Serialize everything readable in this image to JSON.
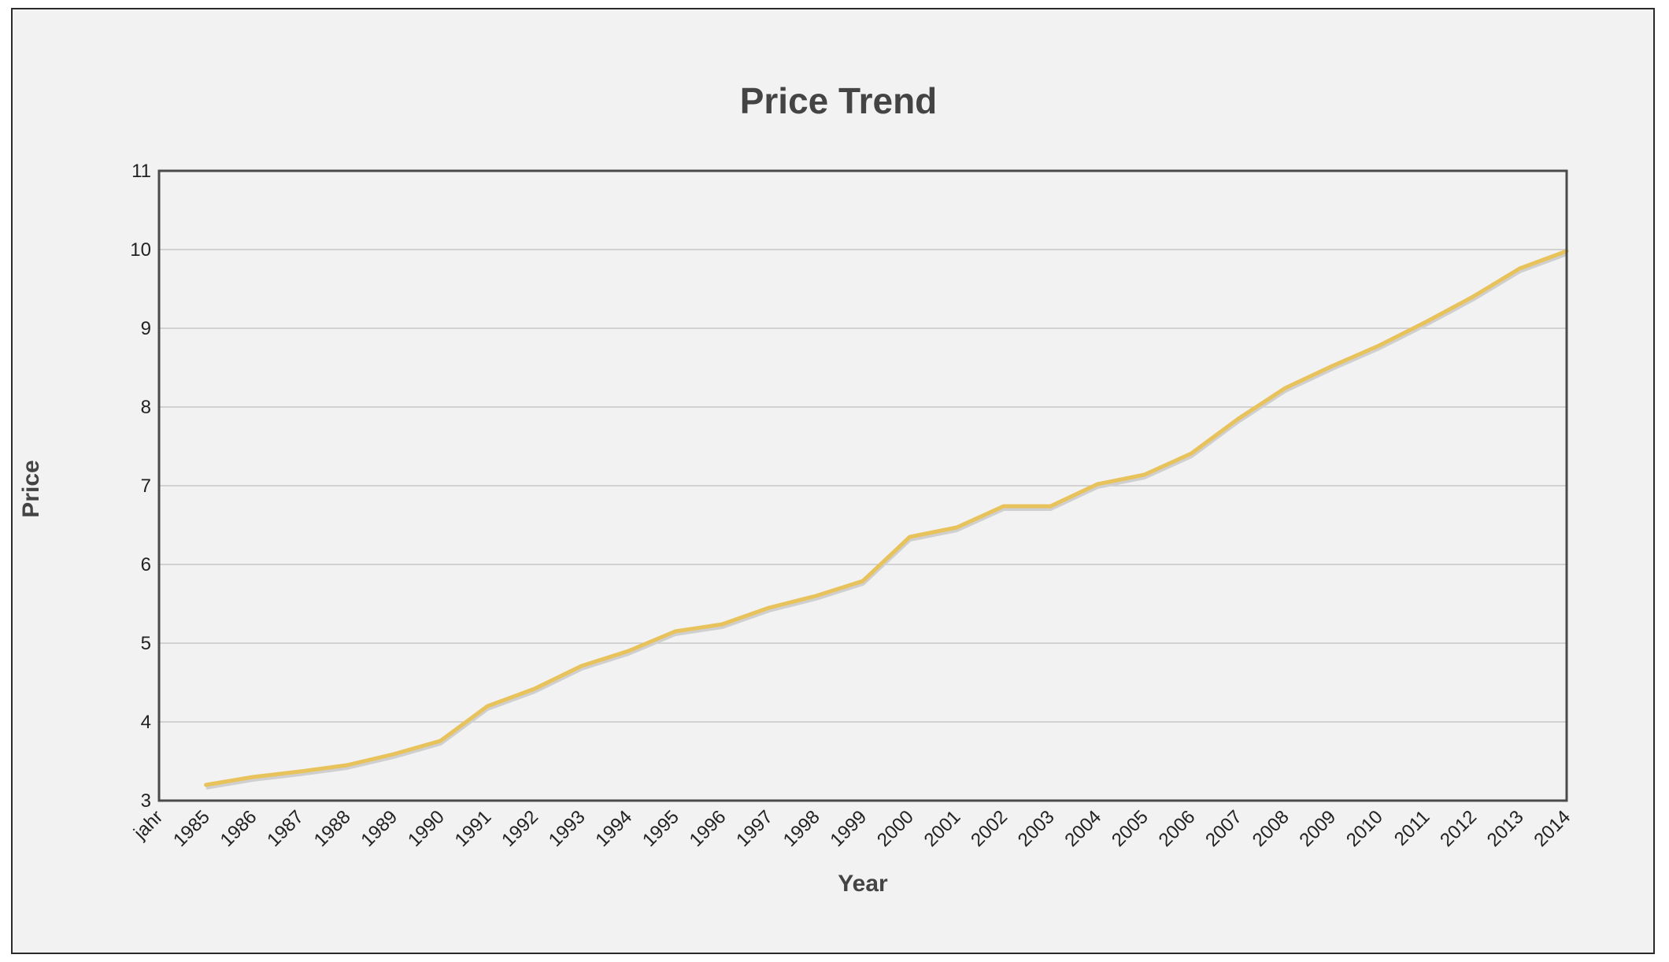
{
  "chart_data": {
    "type": "line",
    "title": "Price Trend",
    "xlabel": "Year",
    "ylabel": "Price",
    "categories": [
      "jahr",
      "1985",
      "1986",
      "1987",
      "1988",
      "1989",
      "1990",
      "1991",
      "1992",
      "1993",
      "1994",
      "1995",
      "1996",
      "1997",
      "1998",
      "1999",
      "2000",
      "2001",
      "2002",
      "2003",
      "2004",
      "2005",
      "2006",
      "2007",
      "2008",
      "2009",
      "2010",
      "2011",
      "2012",
      "2013",
      "2014"
    ],
    "series": [
      {
        "color": "#e8c25a",
        "values": [
          null,
          3.2,
          3.3,
          3.37,
          3.45,
          3.59,
          3.76,
          4.2,
          4.42,
          4.71,
          4.9,
          5.15,
          5.24,
          5.45,
          5.6,
          5.79,
          6.35,
          6.47,
          6.74,
          6.74,
          7.02,
          7.14,
          7.41,
          7.85,
          8.24,
          8.52,
          8.78,
          9.08,
          9.4,
          9.76,
          9.98
        ]
      }
    ],
    "yticks": [
      3,
      4,
      5,
      6,
      7,
      8,
      9,
      10,
      11
    ],
    "ylim": [
      3,
      11
    ],
    "grid": true,
    "legend": "none"
  }
}
